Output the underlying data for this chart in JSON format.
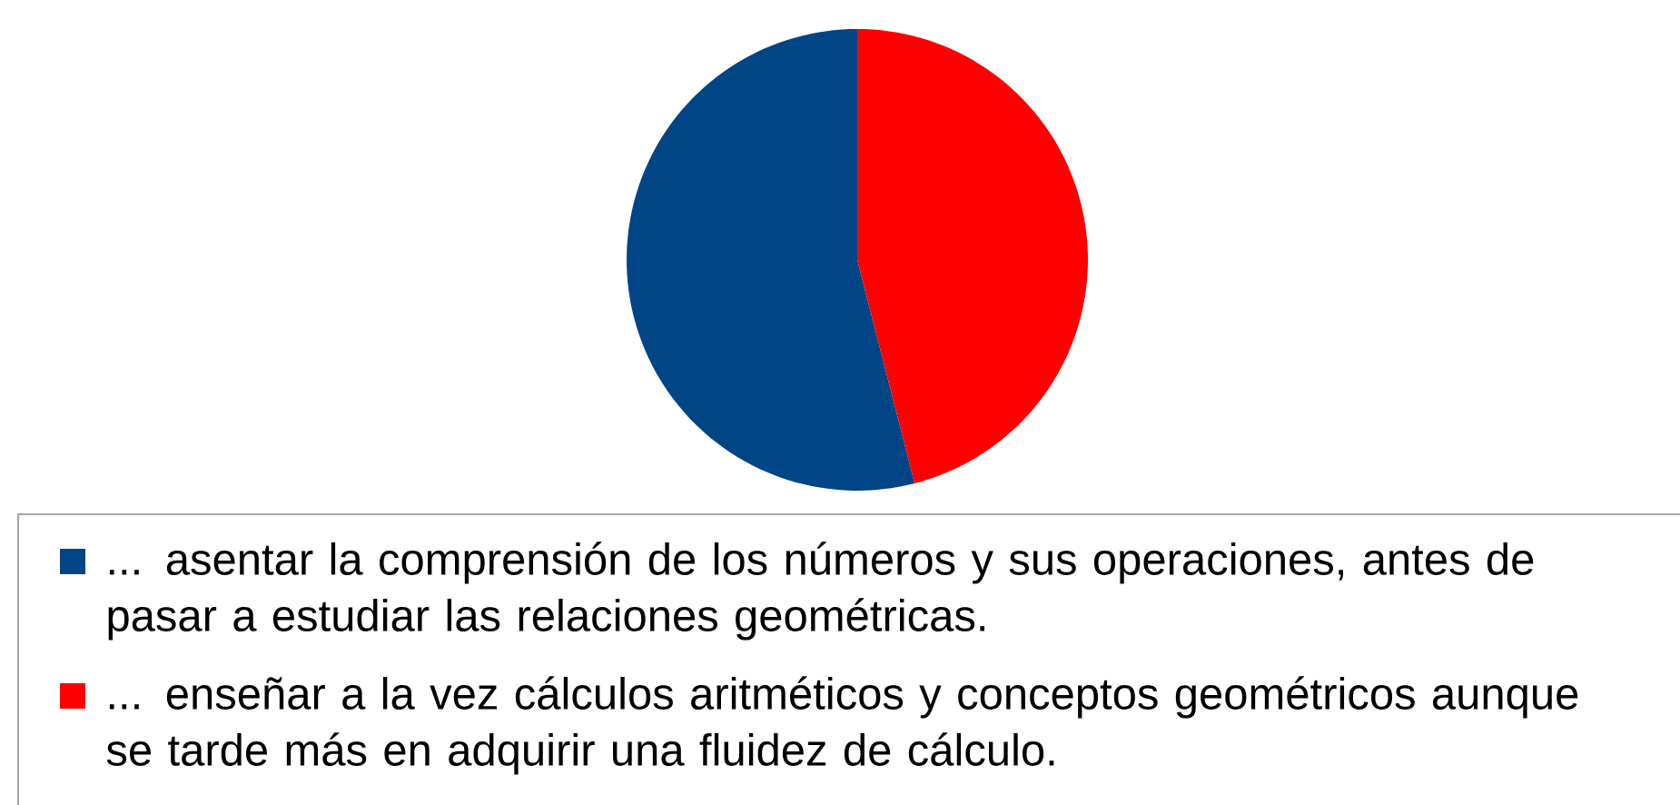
{
  "chart_data": {
    "type": "pie",
    "categories": [
      "... asentar la comprensión de los números y sus operaciones, antes de pasar a estudiar las relaciones geométricas.",
      "... enseñar a la vez cálculos aritméticos y conceptos geométricos aunque se tarde más en adquirir una fluidez de cálculo."
    ],
    "values": [
      54,
      46
    ],
    "colors": [
      "#004586",
      "#ff0000"
    ],
    "legend": "bottom"
  }
}
